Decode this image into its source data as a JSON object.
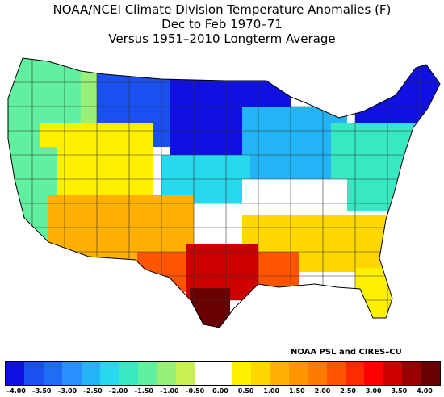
{
  "title": {
    "line1": "NOAA/NCEI Climate Division Temperature Anomalies (F)",
    "line2": "Dec to Feb 1970–71",
    "line3": "Versus 1951–2010 Longterm Average"
  },
  "credit": "NOAA PSL and CIRES–CU",
  "colorbar": {
    "colors": [
      "#1010e0",
      "#1a4ff0",
      "#1e6ef5",
      "#2a90ff",
      "#22b4f4",
      "#28d8ee",
      "#38e8c2",
      "#60f0a0",
      "#98f078",
      "#c8f050",
      "#ffffff",
      "#ffffff",
      "#fff000",
      "#ffd700",
      "#ffb000",
      "#ff9600",
      "#ff7a00",
      "#ff5500",
      "#ff2a00",
      "#ff0000",
      "#cc0000",
      "#9a0000",
      "#6a0000"
    ],
    "tick_labels": [
      "–4.00",
      "–3.50",
      "–3.00",
      "–2.50",
      "–2.00",
      "–1.50",
      "–1.00",
      "–0.50",
      "0.00",
      "0.50",
      "1.00",
      "1.50",
      "2.00",
      "2.50",
      "3.00",
      "3.50",
      "4.00"
    ]
  },
  "map": {
    "regions": [
      {
        "name": "pacific-northwest",
        "color": "#60f0a0"
      },
      {
        "name": "northern-rockies",
        "color": "#98f078"
      },
      {
        "name": "northern-plains",
        "color": "#1a4ff0"
      },
      {
        "name": "upper-midwest",
        "color": "#1010e0"
      },
      {
        "name": "great-lakes",
        "color": "#22b4f4"
      },
      {
        "name": "new-england",
        "color": "#1010e0"
      },
      {
        "name": "mid-atlantic",
        "color": "#38e8c2"
      },
      {
        "name": "central-plains",
        "color": "#28d8ee"
      },
      {
        "name": "great-basin",
        "color": "#fff000"
      },
      {
        "name": "california",
        "color": "#60f0a0"
      },
      {
        "name": "southwest",
        "color": "#ffb000"
      },
      {
        "name": "ohio-valley",
        "color": "#ffffff"
      },
      {
        "name": "southeast",
        "color": "#ffd700"
      },
      {
        "name": "gulf-coast",
        "color": "#ff5500"
      },
      {
        "name": "texas",
        "color": "#cc0000"
      },
      {
        "name": "south-texas",
        "color": "#6a0000"
      },
      {
        "name": "florida",
        "color": "#fff000"
      }
    ]
  }
}
